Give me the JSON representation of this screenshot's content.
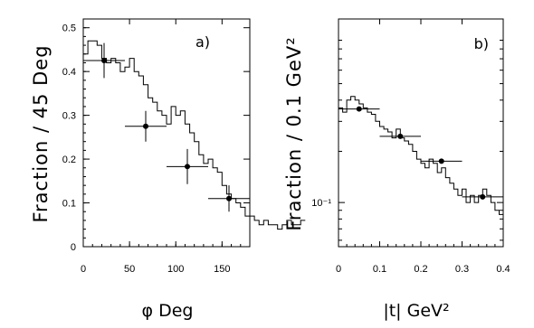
{
  "chart_data": [
    {
      "type": "line",
      "panel_label": "a)",
      "xlabel": "φ  Deg",
      "ylabel": "Fraction / 45 Deg",
      "xlim": [
        0,
        180
      ],
      "ylim": [
        0,
        0.52
      ],
      "xticks": [
        "0",
        "50",
        "100",
        "150"
      ],
      "xtick_values": [
        0,
        50,
        100,
        150
      ],
      "yticks": [
        "0",
        "0.1",
        "0.2",
        "0.3",
        "0.4",
        "0.5"
      ],
      "ytick_values": [
        0,
        0.1,
        0.2,
        0.3,
        0.4,
        0.5
      ],
      "yscale": "linear",
      "series": [
        {
          "kind": "histogram",
          "bin_width": 5,
          "x_start": 0,
          "values": [
            0.44,
            0.47,
            0.47,
            0.46,
            0.43,
            0.42,
            0.43,
            0.42,
            0.4,
            0.41,
            0.43,
            0.4,
            0.39,
            0.37,
            0.34,
            0.33,
            0.31,
            0.3,
            0.28,
            0.32,
            0.3,
            0.31,
            0.28,
            0.26,
            0.24,
            0.21,
            0.19,
            0.2,
            0.18,
            0.17,
            0.14,
            0.12,
            0.11,
            0.1,
            0.09,
            0.07,
            0.07,
            0.06,
            0.05,
            0.06,
            0.05,
            0.05,
            0.04,
            0.05,
            0.06,
            0.05,
            0.05,
            0.06
          ]
        },
        {
          "kind": "points",
          "points": [
            {
              "x": 22.5,
              "y": 0.425,
              "xerr": 22.5,
              "yerr": 0.04
            },
            {
              "x": 67.5,
              "y": 0.275,
              "xerr": 22.5,
              "yerr": 0.035
            },
            {
              "x": 112.5,
              "y": 0.183,
              "xerr": 22.5,
              "yerr": 0.04
            },
            {
              "x": 157.5,
              "y": 0.11,
              "xerr": 22.5,
              "yerr": 0.03
            }
          ]
        }
      ]
    },
    {
      "type": "line",
      "panel_label": "b)",
      "xlabel": "|t|    GeV²",
      "ylabel": "Fraction / 0.1 GeV²",
      "xlim": [
        0,
        0.4
      ],
      "ylim": [
        0.055,
        1.2
      ],
      "xticks": [
        "0",
        "0.1",
        "0.2",
        "0.3",
        "0.4"
      ],
      "xtick_values": [
        0,
        0.1,
        0.2,
        0.3,
        0.4
      ],
      "yticks": [
        "10⁻¹"
      ],
      "ytick_values": [
        0.1
      ],
      "yscale": "log",
      "series": [
        {
          "kind": "histogram",
          "bin_width": 0.01,
          "x_start": 0,
          "values": [
            0.36,
            0.34,
            0.4,
            0.42,
            0.4,
            0.38,
            0.36,
            0.34,
            0.33,
            0.3,
            0.28,
            0.27,
            0.26,
            0.24,
            0.27,
            0.24,
            0.23,
            0.22,
            0.2,
            0.18,
            0.17,
            0.16,
            0.18,
            0.17,
            0.15,
            0.16,
            0.14,
            0.13,
            0.12,
            0.11,
            0.12,
            0.1,
            0.11,
            0.1,
            0.11,
            0.12,
            0.11,
            0.1,
            0.09,
            0.085
          ]
        },
        {
          "kind": "points",
          "points": [
            {
              "x": 0.05,
              "y": 0.355,
              "xerr": 0.05,
              "yerr": 0.0
            },
            {
              "x": 0.15,
              "y": 0.245,
              "xerr": 0.05,
              "yerr": 0.0
            },
            {
              "x": 0.25,
              "y": 0.175,
              "xerr": 0.05,
              "yerr": 0.0
            },
            {
              "x": 0.35,
              "y": 0.108,
              "xerr": 0.05,
              "yerr": 0.0
            }
          ]
        }
      ]
    }
  ]
}
